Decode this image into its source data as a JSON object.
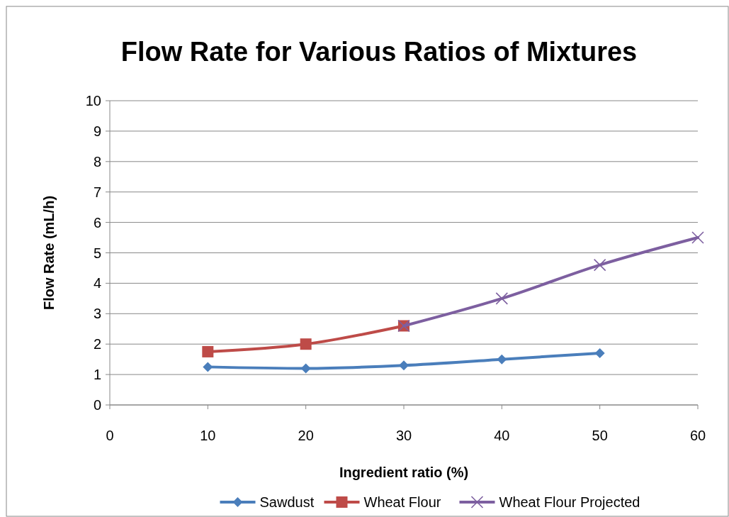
{
  "chart_data": {
    "type": "line",
    "title": "Flow Rate for Various Ratios of Mixtures",
    "xlabel": "Ingredient ratio (%)",
    "ylabel": "Flow Rate (mL/h)",
    "xlim": [
      0,
      60
    ],
    "xticks": [
      0,
      10,
      20,
      30,
      40,
      50,
      60
    ],
    "ylim": [
      0,
      10
    ],
    "yticks": [
      0,
      1,
      2,
      3,
      4,
      5,
      6,
      7,
      8,
      9,
      10
    ],
    "grid": "y",
    "legend": "bottom",
    "series": [
      {
        "name": "Sawdust",
        "color": "#4a7ebb",
        "marker": "diamond",
        "x": [
          10,
          20,
          30,
          40,
          50
        ],
        "values": [
          1.25,
          1.2,
          1.3,
          1.5,
          1.7
        ]
      },
      {
        "name": "Wheat Flour",
        "color": "#be4b48",
        "marker": "square",
        "x": [
          10,
          20,
          30
        ],
        "values": [
          1.75,
          2.0,
          2.6
        ]
      },
      {
        "name": "Wheat Flour Projected",
        "color": "#7d5fa0",
        "marker": "cross",
        "x": [
          30,
          40,
          50,
          60
        ],
        "values": [
          2.6,
          3.5,
          4.6,
          5.5
        ]
      }
    ]
  }
}
